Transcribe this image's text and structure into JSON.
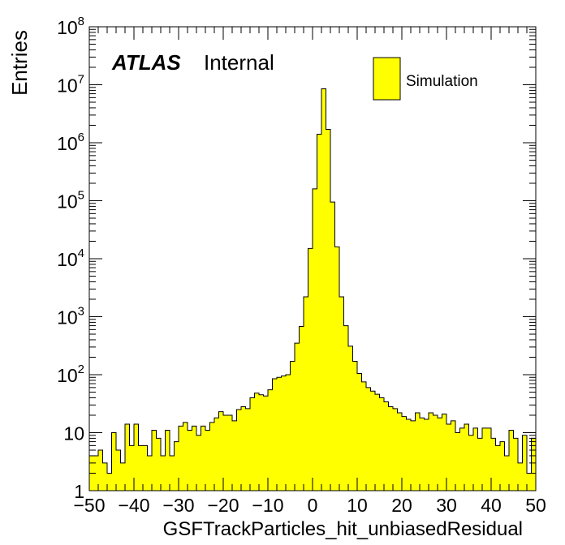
{
  "chart_data": {
    "type": "bar",
    "title": "",
    "xlabel": "GSFTrackParticles_hit_unbiasedResidual",
    "ylabel": "Entries",
    "xlim": [
      -50,
      50
    ],
    "ylim": [
      1,
      100000000
    ],
    "yscale": "log",
    "bin_width": 1,
    "grid": false,
    "legend_position": "top-right",
    "series": [
      {
        "name": "Simulation",
        "color": "#ffff00",
        "edge_color": "#000000",
        "bin_edges_start": -50,
        "values": [
          4,
          4,
          5,
          3,
          2,
          10,
          5,
          3,
          14,
          6,
          14,
          6,
          6,
          4,
          11,
          8,
          4,
          11,
          4,
          7,
          13,
          15,
          11,
          13,
          9,
          13,
          11,
          15,
          18,
          23,
          20,
          20,
          16,
          25,
          28,
          26,
          40,
          48,
          45,
          43,
          55,
          85,
          90,
          95,
          100,
          170,
          350,
          680,
          2200,
          15000,
          160000,
          1400000,
          8500000,
          1700000,
          95000,
          16000,
          2200,
          700,
          310,
          170,
          105,
          75,
          60,
          52,
          46,
          40,
          34,
          28,
          26,
          22,
          19,
          17,
          16,
          22,
          18,
          17,
          22,
          20,
          18,
          21,
          14,
          16,
          10,
          12,
          14,
          9,
          12,
          8,
          12,
          12,
          8,
          6,
          7,
          4,
          11,
          8,
          3,
          9,
          2,
          8
        ]
      }
    ],
    "x_ticks": [
      {
        "value": -50,
        "label": "−50"
      },
      {
        "value": -40,
        "label": "−40"
      },
      {
        "value": -30,
        "label": "−30"
      },
      {
        "value": -20,
        "label": "−20"
      },
      {
        "value": -10,
        "label": "−10"
      },
      {
        "value": 0,
        "label": "0"
      },
      {
        "value": 10,
        "label": "10"
      },
      {
        "value": 20,
        "label": "20"
      },
      {
        "value": 30,
        "label": "30"
      },
      {
        "value": 40,
        "label": "40"
      },
      {
        "value": 50,
        "label": "50"
      }
    ],
    "y_ticks": [
      {
        "value": 1,
        "base": "1",
        "exp": ""
      },
      {
        "value": 10,
        "base": "10",
        "exp": ""
      },
      {
        "value": 100,
        "base": "10",
        "exp": "2"
      },
      {
        "value": 1000,
        "base": "10",
        "exp": "3"
      },
      {
        "value": 10000,
        "base": "10",
        "exp": "4"
      },
      {
        "value": 100000,
        "base": "10",
        "exp": "5"
      },
      {
        "value": 1000000,
        "base": "10",
        "exp": "6"
      },
      {
        "value": 10000000,
        "base": "10",
        "exp": "7"
      },
      {
        "value": 100000000,
        "base": "10",
        "exp": "8"
      }
    ]
  },
  "labels": {
    "experiment": "ATLAS",
    "status": "Internal",
    "legend_entry": "Simulation"
  }
}
